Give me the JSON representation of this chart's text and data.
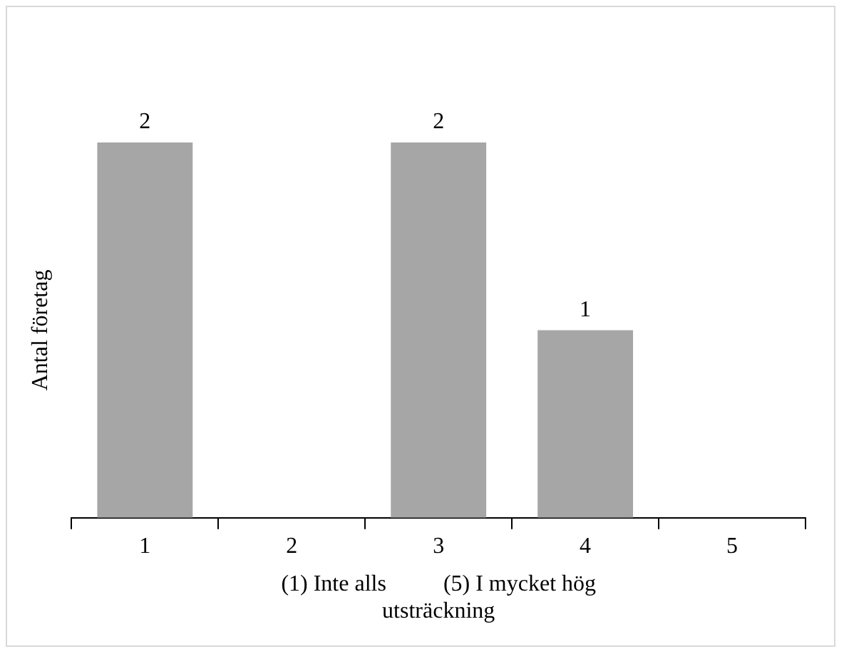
{
  "chart_data": {
    "type": "bar",
    "categories": [
      "1",
      "2",
      "3",
      "4",
      "5"
    ],
    "values": [
      2,
      0,
      2,
      1,
      0
    ],
    "value_labels": [
      "2",
      null,
      "2",
      "1",
      null
    ],
    "color": "#a6a6a6",
    "ylabel": "Antal företag",
    "xlabel": "(1) Inte alls          (5) I mycket hög utsträckning",
    "tick_labels": "x",
    "grid": false,
    "legend": false
  }
}
